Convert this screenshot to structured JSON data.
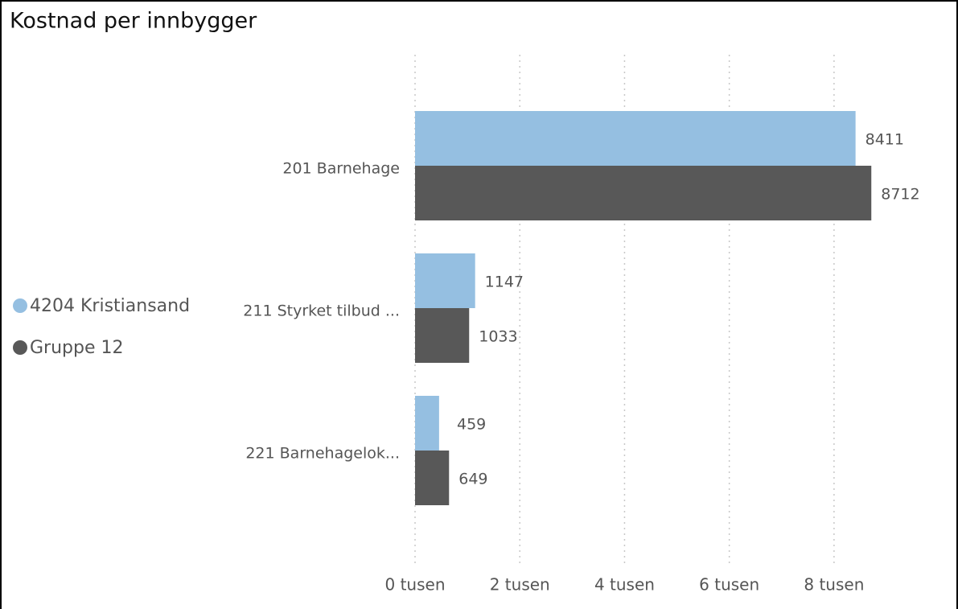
{
  "chart_data": {
    "type": "hbar",
    "title": "Kostnad per innbygger",
    "categories": [
      "201 Barnehage",
      "211 Styrket tilbud ...",
      "221 Barnehagelok..."
    ],
    "series": [
      {
        "name": "4204 Kristiansand",
        "color": "#95bfe1",
        "values": [
          8411,
          1147,
          459
        ]
      },
      {
        "name": "Gruppe 12",
        "color": "#585858",
        "values": [
          8712,
          1033,
          649
        ]
      }
    ],
    "xlim": [
      0,
      9800
    ],
    "xticks": [
      {
        "value": 0,
        "label": "0 tusen"
      },
      {
        "value": 2000,
        "label": "2 tusen"
      },
      {
        "value": 4000,
        "label": "4 tusen"
      },
      {
        "value": 6000,
        "label": "6 tusen"
      },
      {
        "value": 8000,
        "label": "8 tusen"
      }
    ],
    "grid": true,
    "legend": "left"
  }
}
